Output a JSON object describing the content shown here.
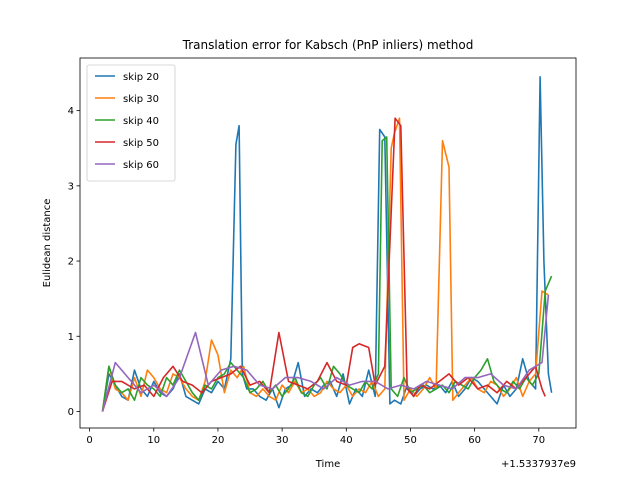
{
  "chart_data": {
    "type": "line",
    "title": "Translation error for Kabsch (PnP inliers) method",
    "xlabel": "Time",
    "ylabel": "Eulidean distance",
    "x_offset_label": "+1.5337937e9",
    "xlim": [
      -1.5,
      75.8
    ],
    "ylim": [
      -0.22,
      4.7
    ],
    "xticks": [
      0,
      10,
      20,
      30,
      40,
      50,
      60,
      70
    ],
    "yticks": [
      0,
      1,
      2,
      3,
      4
    ],
    "grid": false,
    "legend_position": "top-left",
    "series": [
      {
        "name": "skip 20",
        "color": "#1f77b4",
        "x": [
          2,
          3,
          4,
          5,
          6,
          7,
          8,
          9,
          10,
          11,
          12,
          13,
          14,
          15,
          16,
          17,
          18,
          19,
          20,
          21,
          22,
          22.8,
          23.3,
          23.8,
          24.5,
          25.5,
          26.5,
          27.5,
          28.5,
          29.5,
          30.5,
          31.5,
          32.5,
          33.5,
          34.5,
          35.5,
          36.5,
          37.5,
          38.5,
          39.5,
          40.5,
          41.5,
          42.5,
          43.5,
          44.5,
          45.2,
          46,
          46.8,
          47.5,
          48.5,
          49.5,
          50.5,
          51.5,
          52.5,
          53.5,
          54.5,
          55.5,
          56.5,
          57.5,
          58.5,
          59.5,
          60.5,
          61.5,
          62.5,
          63.5,
          64.5,
          65.5,
          66.5,
          67.5,
          68.5,
          69.5,
          70.2,
          70.8,
          71.5,
          72
        ],
        "y": [
          0.0,
          0.5,
          0.35,
          0.2,
          0.15,
          0.55,
          0.3,
          0.2,
          0.4,
          0.25,
          0.2,
          0.3,
          0.5,
          0.2,
          0.15,
          0.1,
          0.3,
          0.25,
          0.4,
          0.3,
          0.7,
          3.55,
          3.8,
          0.5,
          0.3,
          0.3,
          0.2,
          0.15,
          0.3,
          0.05,
          0.3,
          0.35,
          0.65,
          0.2,
          0.3,
          0.25,
          0.35,
          0.4,
          0.2,
          0.5,
          0.1,
          0.3,
          0.2,
          0.55,
          0.2,
          3.75,
          3.65,
          0.1,
          0.15,
          0.1,
          0.35,
          0.2,
          0.3,
          0.35,
          0.3,
          0.35,
          0.25,
          0.4,
          0.2,
          0.3,
          0.45,
          0.4,
          0.3,
          0.2,
          0.1,
          0.35,
          0.2,
          0.3,
          0.7,
          0.4,
          0.3,
          4.45,
          2.0,
          0.5,
          0.25
        ]
      },
      {
        "name": "skip 30",
        "color": "#ff7f0e",
        "x": [
          2,
          3,
          4,
          5,
          6,
          7,
          8,
          9,
          10,
          11,
          12,
          13,
          14,
          15,
          16,
          17,
          18,
          19,
          20,
          21,
          22,
          23,
          24,
          25,
          26,
          27,
          28,
          29,
          30,
          31,
          32,
          33,
          34,
          35,
          36,
          37,
          38,
          39,
          40,
          41,
          42,
          43,
          44,
          45,
          46,
          47,
          47.5,
          48.3,
          49,
          50,
          51,
          52,
          53,
          54,
          55,
          56,
          56.6,
          57.5,
          58.5,
          59.5,
          60.5,
          61.5,
          62.5,
          63.5,
          64.5,
          65.5,
          66.5,
          67.5,
          68.5,
          69.5,
          70.5,
          71.5
        ],
        "y": [
          0.0,
          0.6,
          0.3,
          0.25,
          0.15,
          0.45,
          0.2,
          0.55,
          0.45,
          0.3,
          0.25,
          0.5,
          0.45,
          0.3,
          0.2,
          0.15,
          0.4,
          0.95,
          0.75,
          0.25,
          0.55,
          0.45,
          0.6,
          0.25,
          0.2,
          0.3,
          0.2,
          0.15,
          0.35,
          0.25,
          0.4,
          0.25,
          0.3,
          0.2,
          0.25,
          0.4,
          0.3,
          0.25,
          0.35,
          0.2,
          0.3,
          0.25,
          0.4,
          0.2,
          0.3,
          3.5,
          3.7,
          3.9,
          0.15,
          0.3,
          0.2,
          0.3,
          0.45,
          0.3,
          3.6,
          3.25,
          0.15,
          0.25,
          0.35,
          0.45,
          0.3,
          0.25,
          0.4,
          0.35,
          0.2,
          0.3,
          0.45,
          0.2,
          0.4,
          0.5,
          1.6,
          1.55
        ]
      },
      {
        "name": "skip 40",
        "color": "#2ca02c",
        "x": [
          2,
          3,
          4,
          5,
          6,
          7,
          8,
          9,
          10,
          11,
          12,
          13,
          14,
          15,
          16,
          17,
          18,
          19,
          20,
          21,
          22,
          23,
          24,
          25,
          26,
          27,
          28,
          29,
          30,
          31,
          32,
          33,
          34,
          35,
          36,
          37,
          38,
          39,
          40,
          41,
          42,
          43,
          44,
          45,
          45.6,
          46.3,
          47,
          48,
          49,
          50,
          51,
          52,
          53,
          54,
          55,
          56,
          57,
          58,
          59,
          60,
          61,
          62,
          63,
          64,
          65,
          66,
          67,
          68,
          69,
          70,
          71,
          72
        ],
        "y": [
          0.0,
          0.6,
          0.35,
          0.25,
          0.3,
          0.15,
          0.45,
          0.35,
          0.3,
          0.2,
          0.45,
          0.35,
          0.55,
          0.4,
          0.25,
          0.15,
          0.35,
          0.3,
          0.45,
          0.5,
          0.65,
          0.55,
          0.45,
          0.25,
          0.3,
          0.4,
          0.25,
          0.35,
          0.2,
          0.3,
          0.45,
          0.25,
          0.2,
          0.35,
          0.45,
          0.3,
          0.6,
          0.5,
          0.35,
          0.3,
          0.25,
          0.4,
          0.3,
          0.5,
          3.6,
          3.65,
          0.3,
          0.2,
          0.45,
          0.25,
          0.3,
          0.35,
          0.25,
          0.3,
          0.35,
          0.25,
          0.4,
          0.35,
          0.3,
          0.45,
          0.55,
          0.7,
          0.4,
          0.3,
          0.25,
          0.4,
          0.3,
          0.45,
          0.35,
          0.5,
          1.6,
          1.8
        ]
      },
      {
        "name": "skip 50",
        "color": "#d62728",
        "x": [
          2,
          3.5,
          5,
          7,
          8.5,
          10,
          11.5,
          13,
          14.5,
          16,
          17.5,
          19,
          20.5,
          22,
          23.5,
          25,
          26.5,
          28,
          29.5,
          31,
          32.5,
          34,
          35.5,
          37,
          38.5,
          40,
          41,
          42,
          43.5,
          44.5,
          46,
          47.6,
          48.5,
          49.5,
          50.5,
          51.5,
          53,
          54.5,
          56,
          57.5,
          59,
          60.5,
          62,
          63.5,
          65,
          66.5,
          68,
          69.5,
          70.5,
          71
        ],
        "y": [
          0.0,
          0.4,
          0.4,
          0.3,
          0.35,
          0.2,
          0.45,
          0.6,
          0.4,
          0.35,
          0.25,
          0.4,
          0.45,
          0.5,
          0.6,
          0.35,
          0.4,
          0.25,
          1.05,
          0.4,
          0.35,
          0.3,
          0.4,
          0.65,
          0.4,
          0.35,
          0.85,
          0.9,
          0.85,
          0.35,
          0.6,
          3.9,
          3.8,
          0.3,
          0.2,
          0.35,
          0.3,
          0.4,
          0.5,
          0.35,
          0.45,
          0.3,
          0.35,
          0.25,
          0.4,
          0.3,
          0.45,
          0.6,
          0.3,
          0.2
        ]
      },
      {
        "name": "skip 60",
        "color": "#9467bd",
        "x": [
          2,
          4,
          6,
          8,
          10,
          12,
          14,
          16.5,
          18.5,
          20.5,
          22.5,
          24.5,
          26.5,
          28.5,
          30.5,
          32.5,
          34.5,
          36.5,
          38.5,
          40.5,
          42.5,
          44.5,
          46.5,
          48.5,
          50.5,
          52.5,
          54.5,
          56.5,
          58.5,
          60.5,
          62.5,
          64.5,
          66.5,
          68.5,
          70.5,
          71.5
        ],
        "y": [
          0.0,
          0.65,
          0.45,
          0.25,
          0.35,
          0.2,
          0.45,
          1.05,
          0.35,
          0.55,
          0.6,
          0.55,
          0.35,
          0.3,
          0.45,
          0.45,
          0.4,
          0.3,
          0.45,
          0.35,
          0.4,
          0.4,
          0.3,
          0.35,
          0.3,
          0.4,
          0.35,
          0.3,
          0.45,
          0.45,
          0.5,
          0.35,
          0.3,
          0.55,
          0.65,
          1.55
        ]
      }
    ]
  }
}
